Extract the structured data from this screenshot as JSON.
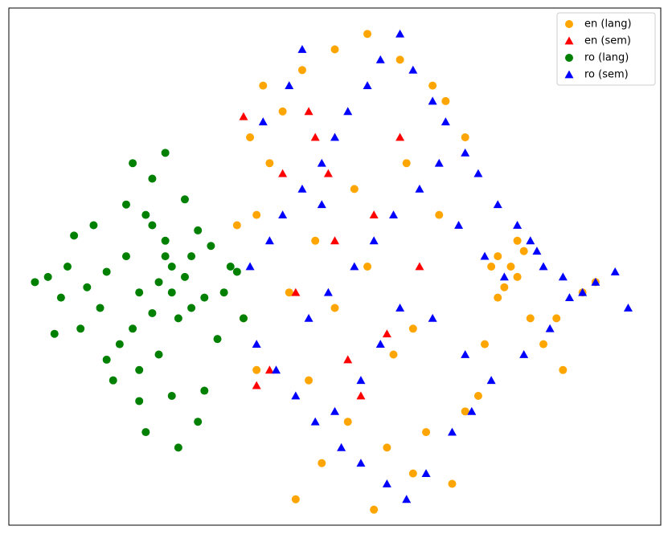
{
  "chart_data": {
    "type": "scatter",
    "xlim": [
      0,
      100
    ],
    "ylim": [
      0,
      100
    ],
    "legend": "upper right",
    "series": [
      {
        "name": "en (lang)",
        "color": "#ffa500",
        "marker": "circle",
        "x": [
          38,
          40,
          42,
          45,
          50,
          55,
          60,
          65,
          70,
          75,
          77,
          78,
          76,
          74,
          79,
          80,
          85,
          88,
          90,
          36,
          38,
          52,
          58,
          62,
          68,
          72,
          82,
          44,
          48,
          56,
          64,
          70,
          47,
          53,
          61,
          37,
          39,
          35,
          66,
          84,
          73,
          50,
          55,
          59,
          43,
          67,
          46,
          78,
          75,
          62
        ],
        "y": [
          60,
          70,
          80,
          88,
          92,
          95,
          90,
          85,
          75,
          52,
          50,
          48,
          46,
          50,
          53,
          40,
          30,
          45,
          47,
          40,
          30,
          20,
          15,
          10,
          8,
          25,
          35,
          5,
          12,
          3,
          18,
          22,
          55,
          65,
          70,
          75,
          85,
          58,
          60,
          40,
          35,
          42,
          50,
          33,
          45,
          82,
          28,
          55,
          44,
          38
        ]
      },
      {
        "name": "en (sem)",
        "color": "#ff0000",
        "marker": "triangle",
        "x": [
          36,
          42,
          50,
          56,
          60,
          44,
          40,
          52,
          47,
          58,
          63,
          38,
          54,
          46,
          49
        ],
        "y": [
          79,
          68,
          55,
          60,
          75,
          45,
          30,
          32,
          75,
          37,
          50,
          27,
          25,
          80,
          68
        ]
      },
      {
        "name": "ro (lang)",
        "color": "#008000",
        "marker": "circle",
        "x": [
          23,
          25,
          20,
          18,
          22,
          27,
          30,
          15,
          12,
          24,
          26,
          21,
          19,
          28,
          17,
          14,
          9,
          6,
          4,
          31,
          33,
          35,
          22,
          24,
          20,
          16,
          25,
          29,
          13,
          11,
          27,
          23,
          21,
          26,
          18,
          32,
          8,
          10,
          24,
          28,
          30,
          22,
          19,
          15,
          25,
          34,
          36,
          7,
          20,
          29
        ],
        "y": [
          47,
          50,
          45,
          52,
          41,
          48,
          44,
          49,
          46,
          55,
          40,
          60,
          38,
          52,
          35,
          42,
          50,
          48,
          47,
          54,
          45,
          49,
          67,
          72,
          30,
          28,
          25,
          20,
          58,
          38,
          63,
          33,
          18,
          15,
          62,
          36,
          44,
          56,
          52,
          42,
          26,
          58,
          70,
          32,
          45,
          50,
          40,
          37,
          24,
          57
        ]
      },
      {
        "name": "ro (sem)",
        "color": "#0000ff",
        "marker": "triangle",
        "x": [
          37,
          40,
          42,
          45,
          48,
          50,
          52,
          55,
          57,
          60,
          62,
          65,
          67,
          70,
          72,
          75,
          78,
          80,
          82,
          85,
          88,
          90,
          93,
          95,
          38,
          41,
          44,
          47,
          51,
          54,
          58,
          61,
          64,
          68,
          71,
          74,
          79,
          83,
          86,
          46,
          49,
          53,
          56,
          59,
          63,
          66,
          69,
          73,
          76,
          43,
          39,
          57,
          60,
          54,
          50,
          45,
          65,
          70,
          81,
          48
        ],
        "y": [
          50,
          55,
          60,
          65,
          70,
          75,
          80,
          85,
          90,
          95,
          88,
          82,
          78,
          72,
          68,
          62,
          58,
          55,
          50,
          48,
          45,
          47,
          49,
          42,
          35,
          30,
          25,
          20,
          15,
          12,
          8,
          5,
          10,
          18,
          22,
          28,
          33,
          38,
          44,
          40,
          45,
          50,
          55,
          60,
          65,
          70,
          58,
          52,
          48,
          85,
          78,
          35,
          42,
          28,
          22,
          92,
          40,
          33,
          53,
          62
        ]
      }
    ]
  }
}
